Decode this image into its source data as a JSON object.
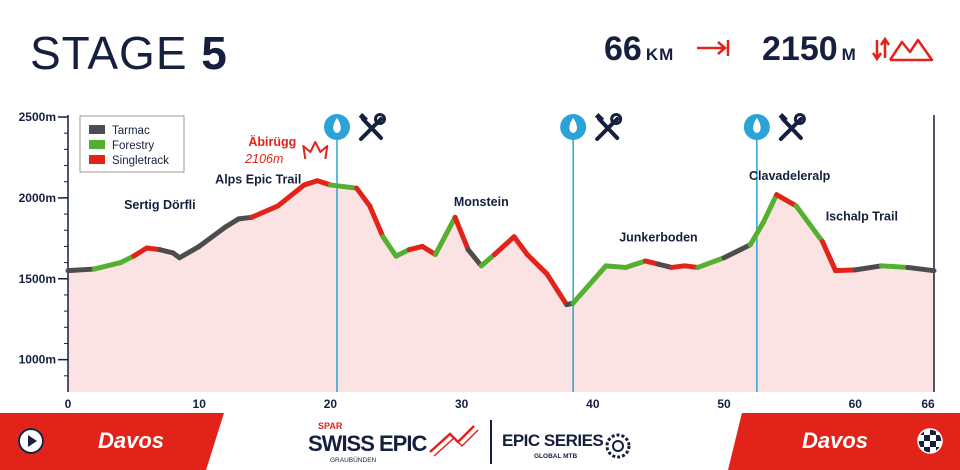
{
  "header": {
    "stage_word": "STAGE",
    "stage_number": "5",
    "distance_value": "66",
    "distance_unit": "KM",
    "elevation_value": "2150",
    "elevation_unit": "M"
  },
  "colors": {
    "navy": "#14203e",
    "red": "#e2231a",
    "tarmac": "#4d4d4d",
    "forestry": "#55b031",
    "singletrack": "#e2231a",
    "fill": "#fbe3e3",
    "aid_station": "#2ba3d8"
  },
  "footer": {
    "start_city": "Davos",
    "finish_city": "Davos",
    "logo_swiss_epic_text": "SWISS EPIC",
    "logo_spar": "SPAR",
    "logo_region": "GRAUBÜNDEN",
    "logo_epic_series": "EPIC SERIES",
    "logo_global": "GLOBAL MTB",
    "icons": [
      "play-circle-icon",
      "finish-flag-icon"
    ]
  },
  "chart_data": {
    "type": "area",
    "xlabel": "",
    "ylabel": "",
    "xlim": [
      0,
      66
    ],
    "ylim": [
      800,
      2500
    ],
    "x_ticks": [
      0,
      10,
      20,
      30,
      40,
      50,
      60,
      66
    ],
    "y_ticks": [
      {
        "value": 1000,
        "label": "1000m"
      },
      {
        "value": 1500,
        "label": "1500m"
      },
      {
        "value": 2000,
        "label": "2000m"
      },
      {
        "value": 2500,
        "label": "2500m"
      }
    ],
    "legend": {
      "placement": "top-left",
      "entries": [
        {
          "name": "Tarmac",
          "color": "#4d4d4d"
        },
        {
          "name": "Forestry",
          "color": "#55b031"
        },
        {
          "name": "Singletrack",
          "color": "#e2231a"
        }
      ]
    },
    "profile": [
      {
        "x": 0,
        "y": 1550,
        "s": "Tarmac"
      },
      {
        "x": 2,
        "y": 1560,
        "s": "Forestry"
      },
      {
        "x": 4,
        "y": 1600,
        "s": "Forestry"
      },
      {
        "x": 5,
        "y": 1640,
        "s": "Singletrack"
      },
      {
        "x": 6,
        "y": 1690,
        "s": "Singletrack"
      },
      {
        "x": 7,
        "y": 1680,
        "s": "Tarmac"
      },
      {
        "x": 8,
        "y": 1660,
        "s": "Tarmac"
      },
      {
        "x": 8.5,
        "y": 1630,
        "s": "Tarmac"
      },
      {
        "x": 10,
        "y": 1700,
        "s": "Tarmac"
      },
      {
        "x": 12,
        "y": 1820,
        "s": "Tarmac"
      },
      {
        "x": 13,
        "y": 1870,
        "s": "Tarmac"
      },
      {
        "x": 14,
        "y": 1880,
        "s": "Singletrack"
      },
      {
        "x": 16,
        "y": 1950,
        "s": "Singletrack"
      },
      {
        "x": 18,
        "y": 2080,
        "s": "Singletrack"
      },
      {
        "x": 19,
        "y": 2106,
        "s": "Singletrack"
      },
      {
        "x": 20,
        "y": 2080,
        "s": "Forestry"
      },
      {
        "x": 21,
        "y": 2070,
        "s": "Forestry"
      },
      {
        "x": 22,
        "y": 2060,
        "s": "Singletrack"
      },
      {
        "x": 23,
        "y": 1950,
        "s": "Singletrack"
      },
      {
        "x": 24,
        "y": 1760,
        "s": "Forestry"
      },
      {
        "x": 25,
        "y": 1640,
        "s": "Forestry"
      },
      {
        "x": 26,
        "y": 1680,
        "s": "Singletrack"
      },
      {
        "x": 27,
        "y": 1700,
        "s": "Singletrack"
      },
      {
        "x": 28,
        "y": 1650,
        "s": "Forestry"
      },
      {
        "x": 29.5,
        "y": 1880,
        "s": "Singletrack"
      },
      {
        "x": 30.5,
        "y": 1680,
        "s": "Tarmac"
      },
      {
        "x": 31.5,
        "y": 1580,
        "s": "Forestry"
      },
      {
        "x": 32.5,
        "y": 1650,
        "s": "Singletrack"
      },
      {
        "x": 34,
        "y": 1760,
        "s": "Singletrack"
      },
      {
        "x": 35,
        "y": 1650,
        "s": "Singletrack"
      },
      {
        "x": 36.5,
        "y": 1530,
        "s": "Singletrack"
      },
      {
        "x": 38,
        "y": 1340,
        "s": "Tarmac"
      },
      {
        "x": 38.5,
        "y": 1350,
        "s": "Forestry"
      },
      {
        "x": 41,
        "y": 1580,
        "s": "Forestry"
      },
      {
        "x": 42.5,
        "y": 1570,
        "s": "Forestry"
      },
      {
        "x": 44,
        "y": 1610,
        "s": "Singletrack"
      },
      {
        "x": 45,
        "y": 1590,
        "s": "Tarmac"
      },
      {
        "x": 46,
        "y": 1570,
        "s": "Singletrack"
      },
      {
        "x": 47,
        "y": 1580,
        "s": "Singletrack"
      },
      {
        "x": 48,
        "y": 1570,
        "s": "Forestry"
      },
      {
        "x": 50,
        "y": 1630,
        "s": "Tarmac"
      },
      {
        "x": 52,
        "y": 1710,
        "s": "Forestry"
      },
      {
        "x": 53,
        "y": 1850,
        "s": "Forestry"
      },
      {
        "x": 54,
        "y": 2020,
        "s": "Singletrack"
      },
      {
        "x": 55.5,
        "y": 1950,
        "s": "Forestry"
      },
      {
        "x": 57.5,
        "y": 1730,
        "s": "Singletrack"
      },
      {
        "x": 58.5,
        "y": 1550,
        "s": "Singletrack"
      },
      {
        "x": 60,
        "y": 1555,
        "s": "Tarmac"
      },
      {
        "x": 62,
        "y": 1580,
        "s": "Forestry"
      },
      {
        "x": 64,
        "y": 1570,
        "s": "Tarmac"
      },
      {
        "x": 66,
        "y": 1550,
        "s": "Tarmac"
      }
    ],
    "annotations": [
      {
        "text": "Sertig Dörfli",
        "x": 7,
        "y": 1930
      },
      {
        "text": "Alps Epic Trail",
        "x": 14.5,
        "y": 2090
      },
      {
        "text": "Monstein",
        "x": 31.5,
        "y": 1950
      },
      {
        "text": "Junkerboden",
        "x": 45,
        "y": 1730
      },
      {
        "text": "Clavadeleralp",
        "x": 55,
        "y": 2110
      },
      {
        "text": "Ischalp Trail",
        "x": 60.5,
        "y": 1860
      }
    ],
    "summit": {
      "name": "Äbirügg",
      "elevation_label": "2106m",
      "x": 19
    },
    "aid_stations": [
      20.5,
      38.5,
      52.5
    ],
    "grid": false
  }
}
